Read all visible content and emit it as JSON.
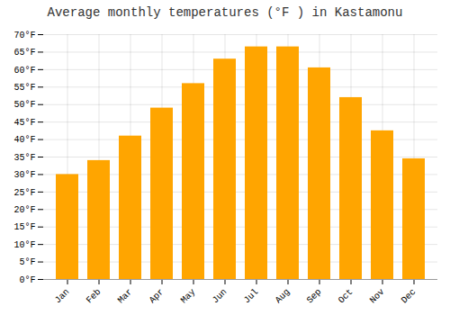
{
  "chart_data": {
    "type": "bar",
    "title": "Average monthly temperatures (°F ) in Kastamonu",
    "categories": [
      "Jan",
      "Feb",
      "Mar",
      "Apr",
      "May",
      "Jun",
      "Jul",
      "Aug",
      "Sep",
      "Oct",
      "Nov",
      "Dec"
    ],
    "values": [
      30,
      34,
      41,
      49,
      56,
      63,
      66.5,
      66.5,
      60.5,
      52,
      42.5,
      34.5
    ],
    "color": "#FFA500",
    "ylim": [
      0,
      70
    ],
    "yticks": [
      {
        "value": 0,
        "label": "0°F"
      },
      {
        "value": 5,
        "label": "5°F"
      },
      {
        "value": 10,
        "label": "10°F"
      },
      {
        "value": 15,
        "label": "15°F"
      },
      {
        "value": 20,
        "label": "20°F"
      },
      {
        "value": 25,
        "label": "25°F"
      },
      {
        "value": 30,
        "label": "30°F"
      },
      {
        "value": 35,
        "label": "35°F"
      },
      {
        "value": 40,
        "label": "40°F"
      },
      {
        "value": 45,
        "label": "45°F"
      },
      {
        "value": 50,
        "label": "50°F"
      },
      {
        "value": 55,
        "label": "55°F"
      },
      {
        "value": 60,
        "label": "60°F"
      },
      {
        "value": 65,
        "label": "65°F"
      },
      {
        "value": 70,
        "label": "70°F"
      }
    ],
    "grid": true
  }
}
